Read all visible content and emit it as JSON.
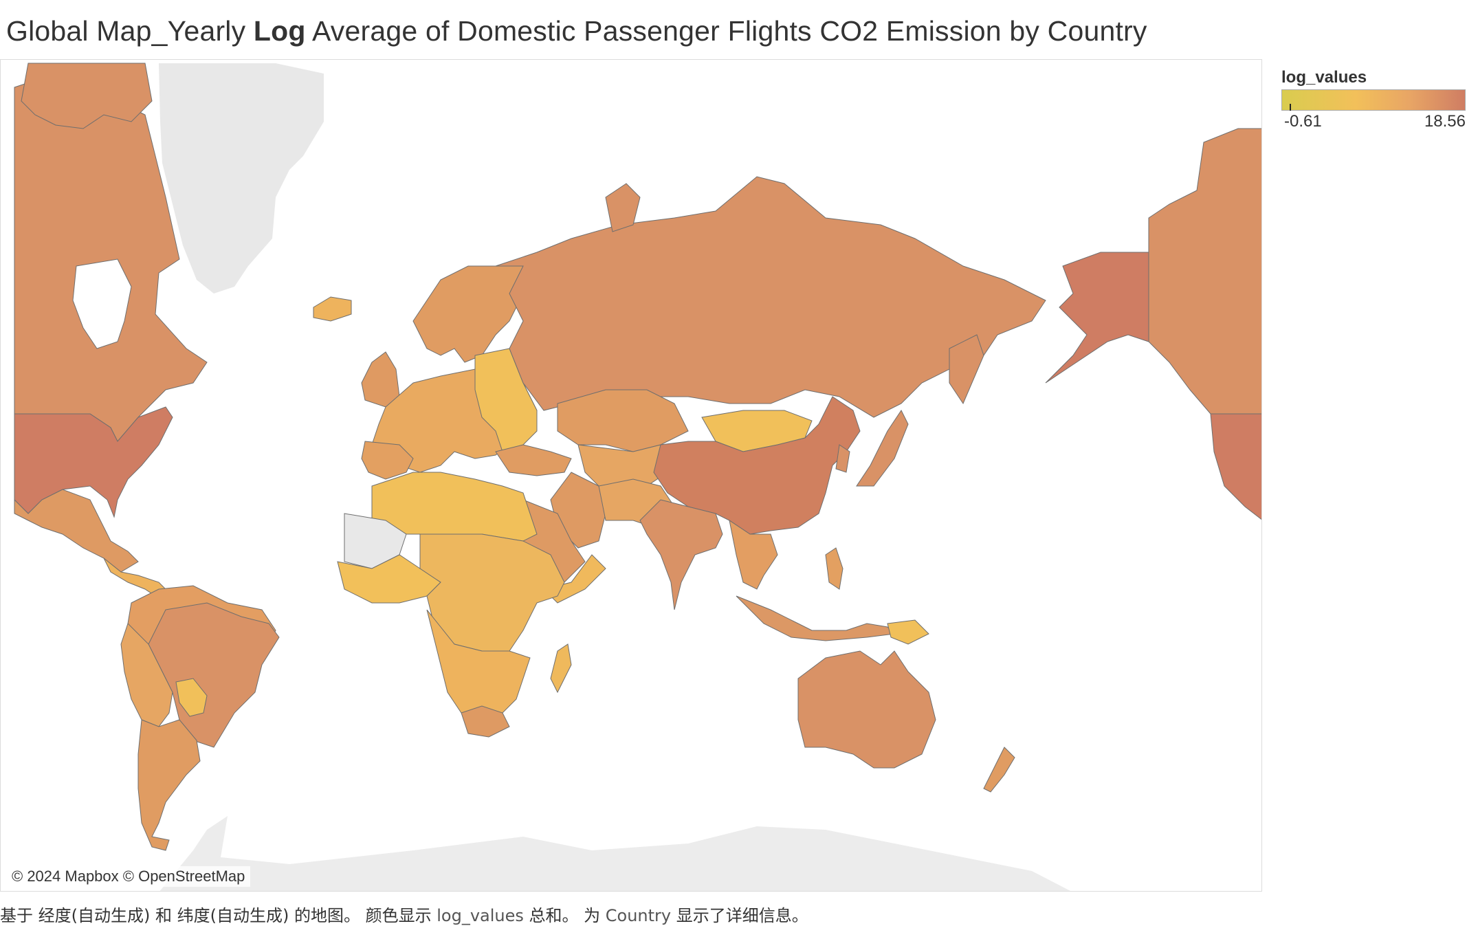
{
  "title": {
    "prefix": "Global Map_Yearly ",
    "bold": "Log",
    "suffix": " Average of Domestic Passenger Flights CO2 Emission by Country"
  },
  "legend": {
    "field": "log_values",
    "min_label": "-0.61",
    "max_label": "18.56",
    "min_value": -0.61,
    "max_value": 18.56,
    "colors": [
      "#d9cc4f",
      "#f2c05a",
      "#e8a565",
      "#cf7d63"
    ]
  },
  "attribution": "© 2024 Mapbox © OpenStreetMap",
  "caption": {
    "part1": "基于 经度(自动生成) 和 纬度(自动生成) 的地图。 颜色显示 ",
    "field": "log_values",
    "part2": " 总和。 为 ",
    "detail": "Country",
    "part3": " 显示了详细信息。"
  },
  "map": {
    "no_data_color": "#e8e8e8",
    "ocean_color": "#ffffff",
    "border_color": "#6e6e6e",
    "regions": [
      {
        "name": "United States",
        "value": 18.56
      },
      {
        "name": "Alaska (United States)",
        "value": 18.56
      },
      {
        "name": "China",
        "value": 18.0
      },
      {
        "name": "Canada",
        "value": 16.5
      },
      {
        "name": "Russia",
        "value": 16.5
      },
      {
        "name": "Brazil",
        "value": 16.5
      },
      {
        "name": "Australia",
        "value": 16.5
      },
      {
        "name": "India",
        "value": 16.5
      },
      {
        "name": "Mexico",
        "value": 15.5
      },
      {
        "name": "Argentina",
        "value": 15.0
      },
      {
        "name": "Kazakhstan",
        "value": 13.5
      },
      {
        "name": "Mongolia",
        "value": 10.0
      },
      {
        "name": "Algeria",
        "value": 11.0
      },
      {
        "name": "Libya",
        "value": 11.5
      },
      {
        "name": "Niger",
        "value": 10.0
      },
      {
        "name": "Chad",
        "value": 10.0
      },
      {
        "name": "Sudan",
        "value": 12.5
      },
      {
        "name": "DR Congo",
        "value": 12.0
      },
      {
        "name": "Angola",
        "value": 12.0
      },
      {
        "name": "South Africa",
        "value": 15.5
      },
      {
        "name": "Madagascar",
        "value": 11.5
      },
      {
        "name": "Indonesia",
        "value": 16.0
      },
      {
        "name": "Saudi Arabia",
        "value": 15.5
      },
      {
        "name": "Iran",
        "value": 15.0
      },
      {
        "name": "Japan",
        "value": 16.5
      },
      {
        "name": "New Zealand",
        "value": 15.0
      },
      {
        "name": "Greenland",
        "value": null
      },
      {
        "name": "Mali",
        "value": null
      },
      {
        "name": "Mauritania",
        "value": null
      }
    ]
  }
}
